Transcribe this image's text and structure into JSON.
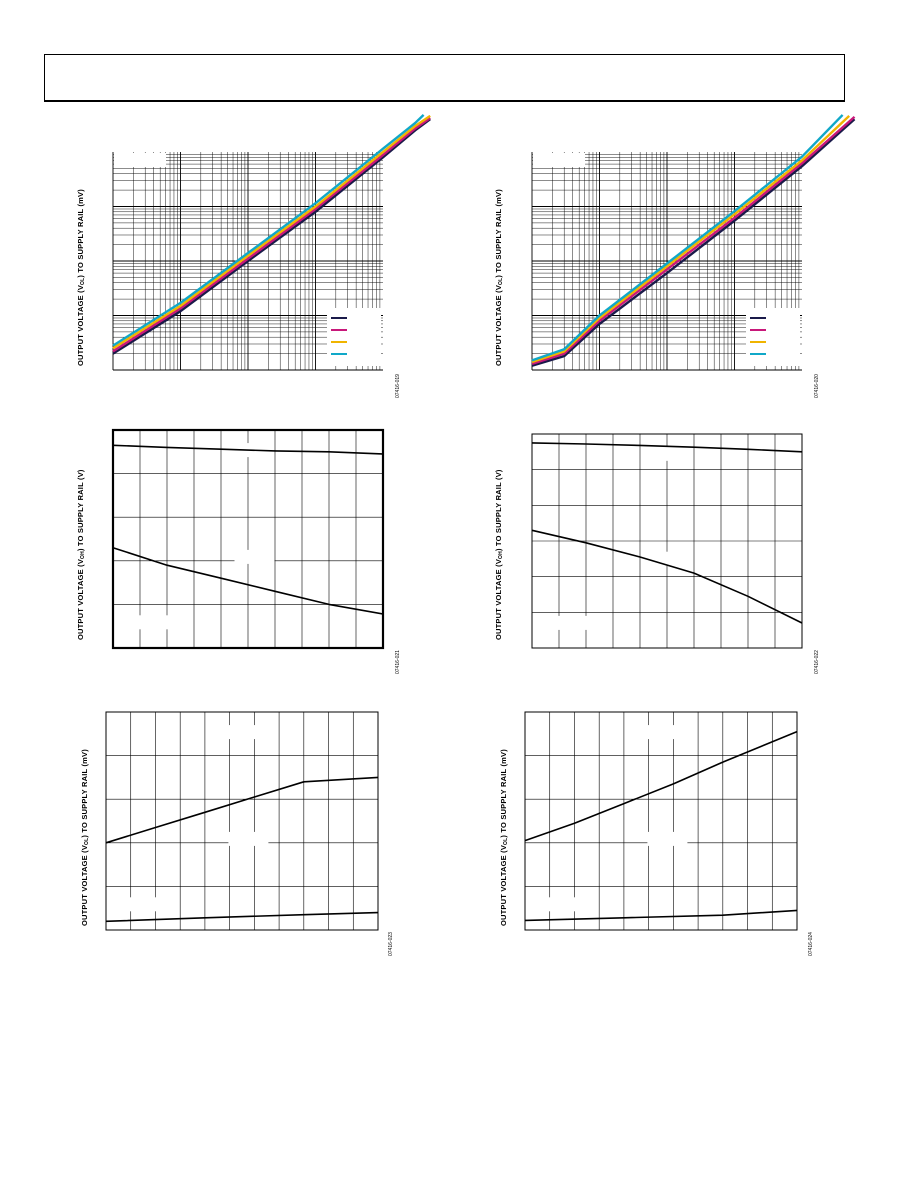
{
  "page": {
    "ylabels": {
      "vol_prefix": "OUTPUT VOLTAGE (V",
      "vol_sub": "OL",
      "voh_sub": "OH",
      "suffix_mv": ") TO SUPPLY RAIL (mV)",
      "suffix_v": ") TO SUPPLY RAIL (V)"
    },
    "figcodes": [
      "07416-019",
      "07416-020",
      "07416-021",
      "07416-022",
      "07416-023",
      "07416-024"
    ]
  },
  "colors": {
    "series": [
      "#1a1a4a",
      "#c8187a",
      "#f0b400",
      "#10a8c8"
    ],
    "grid": "#000000",
    "line": "#000000"
  },
  "chart_data": [
    {
      "id": "chart-1",
      "type": "line",
      "scale": "log-log",
      "x_decades": 4,
      "y_decades": 4,
      "grid": true,
      "legend": "bottom-right",
      "series": [
        {
          "color_index": 0,
          "x": [
            0.001,
            0.01,
            0.1,
            1,
            10,
            30,
            50
          ],
          "y": [
            0.2,
            1.2,
            10,
            80,
            800,
            2500,
            4000
          ]
        },
        {
          "color_index": 1,
          "x": [
            0.001,
            0.01,
            0.1,
            1,
            10,
            30,
            50
          ],
          "y": [
            0.22,
            1.35,
            11,
            90,
            880,
            2700,
            4200
          ]
        },
        {
          "color_index": 2,
          "x": [
            0.001,
            0.01,
            0.1,
            1,
            10,
            30,
            50
          ],
          "y": [
            0.25,
            1.5,
            12.5,
            100,
            1000,
            3000,
            4600
          ]
        },
        {
          "color_index": 3,
          "x": [
            0.001,
            0.01,
            0.1,
            1,
            10,
            30,
            40
          ],
          "y": [
            0.28,
            1.7,
            14,
            115,
            1150,
            3400,
            4800
          ]
        }
      ]
    },
    {
      "id": "chart-2",
      "type": "line",
      "scale": "log-log",
      "x_decades": 4,
      "y_decades": 4,
      "grid": true,
      "legend": "bottom-right",
      "series": [
        {
          "color_index": 0,
          "x": [
            0.001,
            0.003,
            0.01,
            0.1,
            1,
            10,
            60
          ],
          "y": [
            0.12,
            0.18,
            0.7,
            6,
            55,
            550,
            4000
          ]
        },
        {
          "color_index": 1,
          "x": [
            0.001,
            0.003,
            0.01,
            0.1,
            1,
            10,
            60
          ],
          "y": [
            0.13,
            0.2,
            0.8,
            7,
            62,
            620,
            4400
          ]
        },
        {
          "color_index": 2,
          "x": [
            0.001,
            0.003,
            0.01,
            0.1,
            1,
            10,
            50
          ],
          "y": [
            0.14,
            0.22,
            0.9,
            8,
            72,
            700,
            4600
          ]
        },
        {
          "color_index": 3,
          "x": [
            0.001,
            0.003,
            0.01,
            0.1,
            1,
            10,
            40
          ],
          "y": [
            0.15,
            0.24,
            1.0,
            9,
            82,
            820,
            4800
          ]
        }
      ]
    },
    {
      "id": "chart-3",
      "type": "line",
      "x_divisions": 10,
      "y_divisions": 5,
      "xlim": [
        0,
        10
      ],
      "ylim": [
        0,
        5
      ],
      "grid": true,
      "series": [
        {
          "x": [
            0,
            2,
            4,
            6,
            8,
            10
          ],
          "y": [
            4.65,
            4.6,
            4.56,
            4.52,
            4.5,
            4.45
          ]
        },
        {
          "x": [
            0,
            2,
            4,
            6,
            8,
            10
          ],
          "y": [
            2.3,
            1.9,
            1.6,
            1.3,
            1.0,
            0.78
          ]
        }
      ]
    },
    {
      "id": "chart-4",
      "type": "line",
      "x_divisions": 10,
      "y_divisions": 6,
      "xlim": [
        0,
        10
      ],
      "ylim": [
        0,
        6
      ],
      "grid": true,
      "series": [
        {
          "x": [
            0,
            2,
            4,
            6,
            8,
            10
          ],
          "y": [
            5.75,
            5.72,
            5.68,
            5.63,
            5.57,
            5.5
          ]
        },
        {
          "x": [
            0,
            2,
            4,
            6,
            8,
            10
          ],
          "y": [
            3.3,
            2.95,
            2.55,
            2.1,
            1.45,
            0.7
          ]
        }
      ]
    },
    {
      "id": "chart-5",
      "type": "line",
      "x_divisions": 11,
      "y_divisions": 5,
      "xlim": [
        0,
        11
      ],
      "ylim": [
        0,
        5
      ],
      "grid": true,
      "series": [
        {
          "x": [
            0,
            2,
            4,
            6,
            8,
            11
          ],
          "y": [
            2.0,
            2.35,
            2.7,
            3.05,
            3.4,
            3.5
          ]
        },
        {
          "x": [
            0,
            4,
            8,
            11
          ],
          "y": [
            0.2,
            0.28,
            0.35,
            0.4
          ]
        }
      ]
    },
    {
      "id": "chart-6",
      "type": "line",
      "x_divisions": 11,
      "y_divisions": 5,
      "xlim": [
        0,
        11
      ],
      "ylim": [
        0,
        5
      ],
      "grid": true,
      "series": [
        {
          "x": [
            0,
            2,
            4,
            6,
            8,
            11
          ],
          "y": [
            2.05,
            2.45,
            2.9,
            3.35,
            3.85,
            4.55
          ]
        },
        {
          "x": [
            0,
            4,
            8,
            11
          ],
          "y": [
            0.22,
            0.28,
            0.34,
            0.45
          ]
        }
      ]
    }
  ]
}
